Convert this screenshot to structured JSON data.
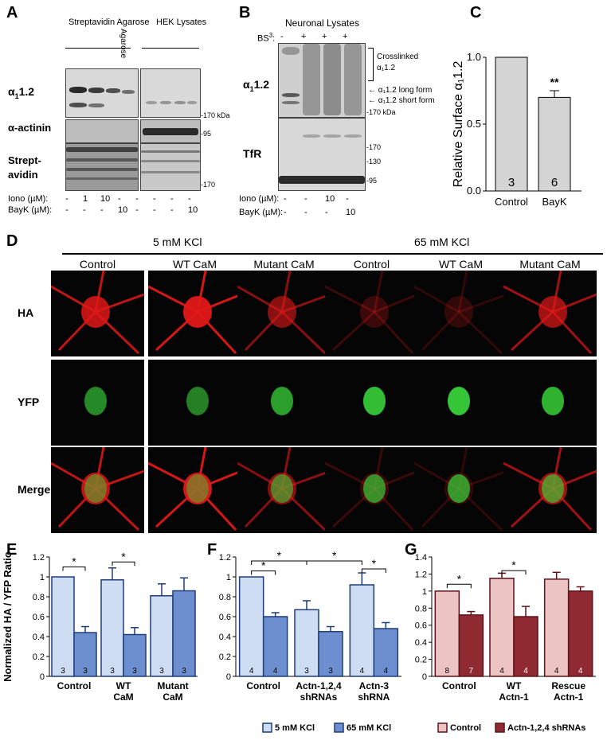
{
  "panels": {
    "A": {
      "letter": "A",
      "header_streptavidin": "Streptavidin Agarose",
      "header_agarose": "Agarose",
      "header_hek": "HEK Lysates",
      "row_alpha": "α",
      "row_alpha_sub": "1",
      "row_alpha_suffix": "1.2",
      "row_actinin": "α-actinin",
      "row_streptavidin": "Strept-avidin",
      "mw_170": "-170 kDa",
      "mw_95": "-95",
      "mw_170b": "-170",
      "iono_label": "Iono (µM):",
      "bayk_label": "BayK (µM):",
      "iono_values": [
        "-",
        "1",
        "10",
        "-",
        "-",
        "-",
        "-",
        "-"
      ],
      "bayk_values": [
        "-",
        "-",
        "-",
        "10",
        "-",
        "-",
        "-",
        "10"
      ]
    },
    "B": {
      "letter": "B",
      "title": "Neuronal Lysates",
      "bs3_label": "BS",
      "bs3_sup": "3",
      "bs3_suffix": ":",
      "bs3_values": [
        "-",
        "+",
        "+",
        "+"
      ],
      "row_alpha": "α",
      "row_alpha_sub": "1",
      "row_alpha_suffix": "1.2",
      "row_tfr": "TfR",
      "crosslinked": "Crosslinked",
      "crosslinked2": "α₁1.2",
      "long_form": "α₁1.2 long form",
      "short_form": "α₁1.2 short form",
      "mw_170": "-170 kDa",
      "mw_tfr": [
        "-170",
        "-130",
        "-95"
      ],
      "iono_label": "Iono (µM):",
      "bayk_label": "BayK (µM):",
      "iono_values": [
        "-",
        "-",
        "10",
        "-"
      ],
      "bayk_values": [
        "-",
        "-",
        "-",
        "10"
      ]
    },
    "C": {
      "letter": "C"
    },
    "D": {
      "letter": "D",
      "group1": "5 mM KCl",
      "group2": "65 mM KCl",
      "columns": [
        "Control",
        "WT CaM",
        "Mutant CaM",
        "Control",
        "WT CaM",
        "Mutant CaM"
      ],
      "rows": [
        "HA",
        "YFP",
        "Merge"
      ],
      "intensity": {
        "HA": [
          0.85,
          0.95,
          0.6,
          0.25,
          0.2,
          0.7
        ],
        "YFP": [
          0.65,
          0.6,
          0.75,
          0.9,
          0.95,
          0.85
        ]
      }
    },
    "E": {
      "letter": "E"
    },
    "F": {
      "letter": "F"
    },
    "G": {
      "letter": "G"
    }
  },
  "colors": {
    "E_light": "#cfddf2",
    "E_dark": "#6e8fcf",
    "E_edge": "#1f3c7a",
    "G_light": "#edc4c4",
    "G_dark": "#8f2a33",
    "G_edge": "#5e1219",
    "C_bar": "#d4d4d4",
    "red": "#e01818",
    "green": "#38d13a"
  },
  "chart_data": [
    {
      "panel": "C",
      "type": "bar",
      "categories": [
        "Control",
        "BayK"
      ],
      "values": [
        1.0,
        0.7
      ],
      "errors": [
        0,
        0.05
      ],
      "n_labels": [
        "3",
        "6"
      ],
      "ylabel": "Relative Surface α₁1.2",
      "ylim": [
        0,
        1.0
      ],
      "yticks": [
        "0.0",
        "0.5",
        "1.0"
      ],
      "annotations": [
        "**"
      ]
    },
    {
      "panel": "E",
      "type": "bar",
      "categories": [
        "Control",
        "WT CaM",
        "Mutant CaM"
      ],
      "series": [
        {
          "name": "5 mM KCl",
          "values": [
            1.0,
            0.97,
            0.81
          ],
          "errors": [
            0,
            0.12,
            0.12
          ],
          "n": [
            "3",
            "3",
            "3"
          ]
        },
        {
          "name": "65 mM KCl",
          "values": [
            0.44,
            0.42,
            0.86
          ],
          "errors": [
            0.06,
            0.07,
            0.13
          ],
          "n": [
            "3",
            "3",
            "3"
          ]
        }
      ],
      "ylabel": "Normalized HA / YFP Ratio",
      "ylim": [
        0,
        1.2
      ],
      "yticks": [
        "0",
        "0.2",
        "0.4",
        "0.6",
        "0.8",
        "1",
        "1.2"
      ],
      "significance": [
        "*",
        "*"
      ]
    },
    {
      "panel": "F",
      "type": "bar",
      "categories": [
        "Control",
        "Actn-1,2,4 shRNAs",
        "Actn-3 shRNA"
      ],
      "series": [
        {
          "name": "5 mM KCl",
          "values": [
            1.0,
            0.67,
            0.92
          ],
          "errors": [
            0,
            0.09,
            0.12
          ],
          "n": [
            "4",
            "3",
            "4"
          ]
        },
        {
          "name": "65 mM KCl",
          "values": [
            0.6,
            0.45,
            0.48
          ],
          "errors": [
            0.04,
            0.05,
            0.06
          ],
          "n": [
            "4",
            "3",
            "4"
          ]
        }
      ],
      "ylim": [
        0,
        1.2
      ],
      "yticks": [
        "0",
        "0.2",
        "0.4",
        "0.6",
        "0.8",
        "1",
        "1.2"
      ],
      "legend": [
        "5 mM KCl",
        "65 mM KCl"
      ],
      "significance": [
        "*",
        "*",
        "*",
        "*"
      ]
    },
    {
      "panel": "G",
      "type": "bar",
      "categories": [
        "Control",
        "WT Actn-1",
        "Rescue Actn-1"
      ],
      "series": [
        {
          "name": "Control",
          "values": [
            1.0,
            1.15,
            1.14
          ],
          "errors": [
            0,
            0.06,
            0.08
          ],
          "n": [
            "8",
            "4",
            "4"
          ]
        },
        {
          "name": "Actn-1,2,4 shRNAs",
          "values": [
            0.72,
            0.7,
            1.0
          ],
          "errors": [
            0.04,
            0.12,
            0.05
          ],
          "n": [
            "7",
            "4",
            "4"
          ]
        }
      ],
      "ylim": [
        0,
        1.4
      ],
      "yticks": [
        "0",
        "0.2",
        "0.4",
        "0.6",
        "0.8",
        "1",
        "1.2",
        "1.4"
      ],
      "legend": [
        "Control",
        "Actn-1,2,4 shRNAs"
      ],
      "significance": [
        "*",
        "*"
      ]
    }
  ]
}
